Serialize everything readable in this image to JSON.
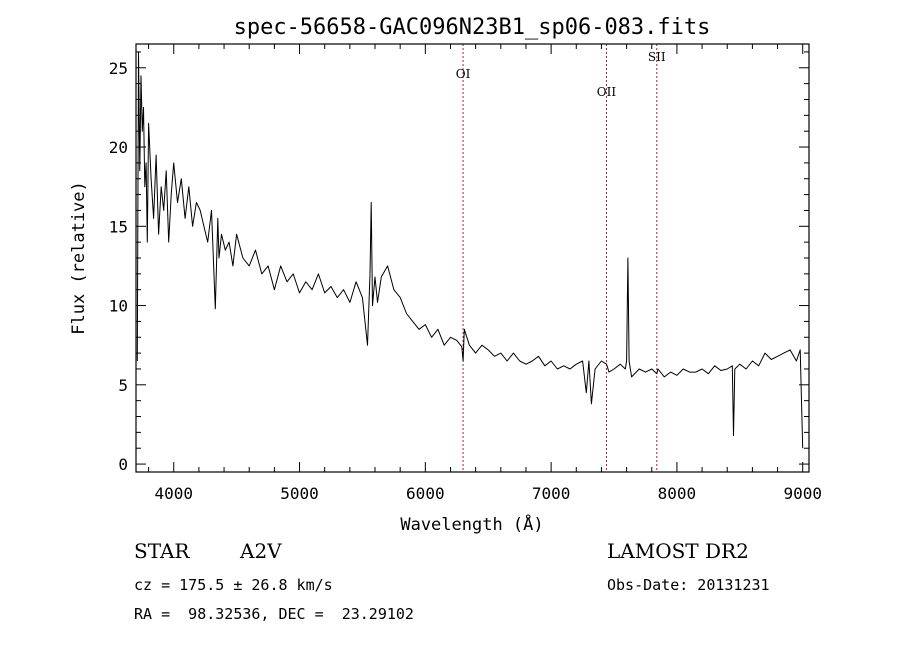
{
  "chart_data": {
    "type": "line",
    "title": "spec-56658-GAC096N23B1_sp06-083.fits",
    "xlabel": "Wavelength (Å)",
    "ylabel": "Flux (relative)",
    "xlim": [
      3700,
      9050
    ],
    "ylim": [
      -0.5,
      26.5
    ],
    "xticks": [
      4000,
      5000,
      6000,
      7000,
      8000,
      9000
    ],
    "yticks": [
      0,
      5,
      10,
      15,
      20,
      25
    ],
    "lines": [
      {
        "label": "OI",
        "x": 6300
      },
      {
        "label": "OII",
        "x": 7440
      },
      {
        "label": "SII",
        "x": 7840
      }
    ],
    "series": [
      {
        "color": "#000000",
        "x": [
          3710,
          3720,
          3730,
          3740,
          3750,
          3760,
          3770,
          3780,
          3790,
          3800,
          3820,
          3840,
          3860,
          3880,
          3900,
          3920,
          3940,
          3960,
          3980,
          4000,
          4030,
          4060,
          4090,
          4120,
          4150,
          4180,
          4210,
          4240,
          4270,
          4300,
          4330,
          4350,
          4360,
          4380,
          4410,
          4440,
          4470,
          4500,
          4550,
          4600,
          4650,
          4700,
          4750,
          4800,
          4850,
          4900,
          4950,
          5000,
          5050,
          5100,
          5150,
          5200,
          5250,
          5300,
          5350,
          5400,
          5450,
          5500,
          5540,
          5560,
          5570,
          5580,
          5600,
          5620,
          5650,
          5700,
          5750,
          5800,
          5850,
          5900,
          5950,
          6000,
          6050,
          6100,
          6150,
          6200,
          6250,
          6290,
          6300,
          6310,
          6350,
          6400,
          6450,
          6500,
          6550,
          6600,
          6650,
          6700,
          6750,
          6800,
          6850,
          6900,
          6950,
          7000,
          7050,
          7100,
          7150,
          7200,
          7250,
          7280,
          7300,
          7320,
          7350,
          7400,
          7440,
          7460,
          7500,
          7550,
          7590,
          7600,
          7610,
          7620,
          7640,
          7700,
          7750,
          7800,
          7840,
          7850,
          7900,
          7950,
          8000,
          8050,
          8100,
          8150,
          8200,
          8250,
          8300,
          8350,
          8400,
          8440,
          8450,
          8460,
          8500,
          8550,
          8600,
          8650,
          8700,
          8750,
          8800,
          8850,
          8900,
          8950,
          8980,
          9000
        ],
        "y": [
          6.5,
          26.0,
          18.5,
          24.5,
          21.0,
          22.5,
          17.5,
          19.0,
          14.0,
          21.5,
          18.0,
          15.5,
          19.5,
          14.5,
          17.5,
          16.0,
          18.5,
          14.0,
          17.0,
          19.0,
          16.5,
          18.0,
          15.5,
          17.5,
          15.0,
          16.5,
          16.0,
          15.0,
          14.0,
          16.0,
          9.8,
          15.5,
          13.0,
          14.5,
          13.5,
          14.0,
          12.5,
          14.5,
          13.0,
          12.5,
          13.5,
          12.0,
          12.5,
          11.0,
          12.5,
          11.5,
          12.0,
          10.8,
          11.5,
          11.0,
          12.0,
          10.8,
          11.2,
          10.5,
          11.0,
          10.2,
          11.5,
          10.5,
          7.5,
          12.0,
          16.5,
          10.0,
          11.8,
          10.2,
          11.8,
          12.5,
          11.0,
          10.5,
          9.5,
          9.0,
          8.5,
          8.8,
          8.0,
          8.5,
          7.5,
          8.0,
          7.8,
          7.4,
          6.5,
          8.5,
          7.5,
          7.0,
          7.5,
          7.2,
          6.8,
          7.0,
          6.5,
          7.0,
          6.5,
          6.3,
          6.5,
          6.8,
          6.2,
          6.5,
          6.0,
          6.2,
          6.0,
          6.3,
          6.5,
          4.5,
          6.5,
          3.8,
          6.0,
          6.5,
          6.3,
          5.8,
          6.0,
          6.3,
          6.0,
          6.5,
          13.0,
          6.5,
          5.5,
          6.0,
          5.8,
          6.0,
          5.7,
          6.0,
          5.5,
          5.8,
          5.6,
          6.0,
          5.8,
          5.8,
          6.0,
          5.7,
          6.2,
          5.9,
          6.0,
          6.2,
          1.8,
          6.0,
          6.3,
          6.0,
          6.5,
          6.2,
          7.0,
          6.6,
          6.8,
          7.0,
          7.2,
          6.5,
          7.2,
          1.0
        ]
      }
    ]
  },
  "annotations": {
    "object_class": "STAR",
    "subclass": "A2V",
    "survey": "LAMOST DR2",
    "cz": "cz = 175.5 ± 26.8 km/s",
    "obs_date": "Obs-Date: 20131231",
    "coords": "RA =  98.32536, DEC =  23.29102"
  }
}
